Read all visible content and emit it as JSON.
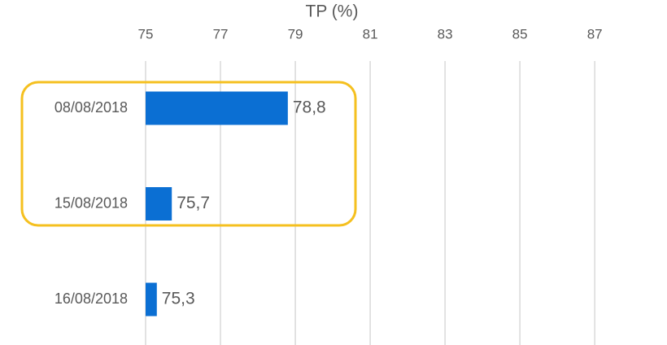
{
  "chart_data": {
    "type": "bar",
    "orientation": "horizontal",
    "title": "TP (%)",
    "categories": [
      "08/08/2018",
      "15/08/2018",
      "16/08/2018"
    ],
    "values": [
      78.8,
      75.7,
      75.3
    ],
    "value_labels": [
      "78,8",
      "75,7",
      "75,3"
    ],
    "color": "#0b6fd3",
    "xlim": [
      75,
      88.8
    ],
    "xticks": [
      75,
      77,
      79,
      81,
      83,
      85,
      87
    ],
    "grid": true
  }
}
